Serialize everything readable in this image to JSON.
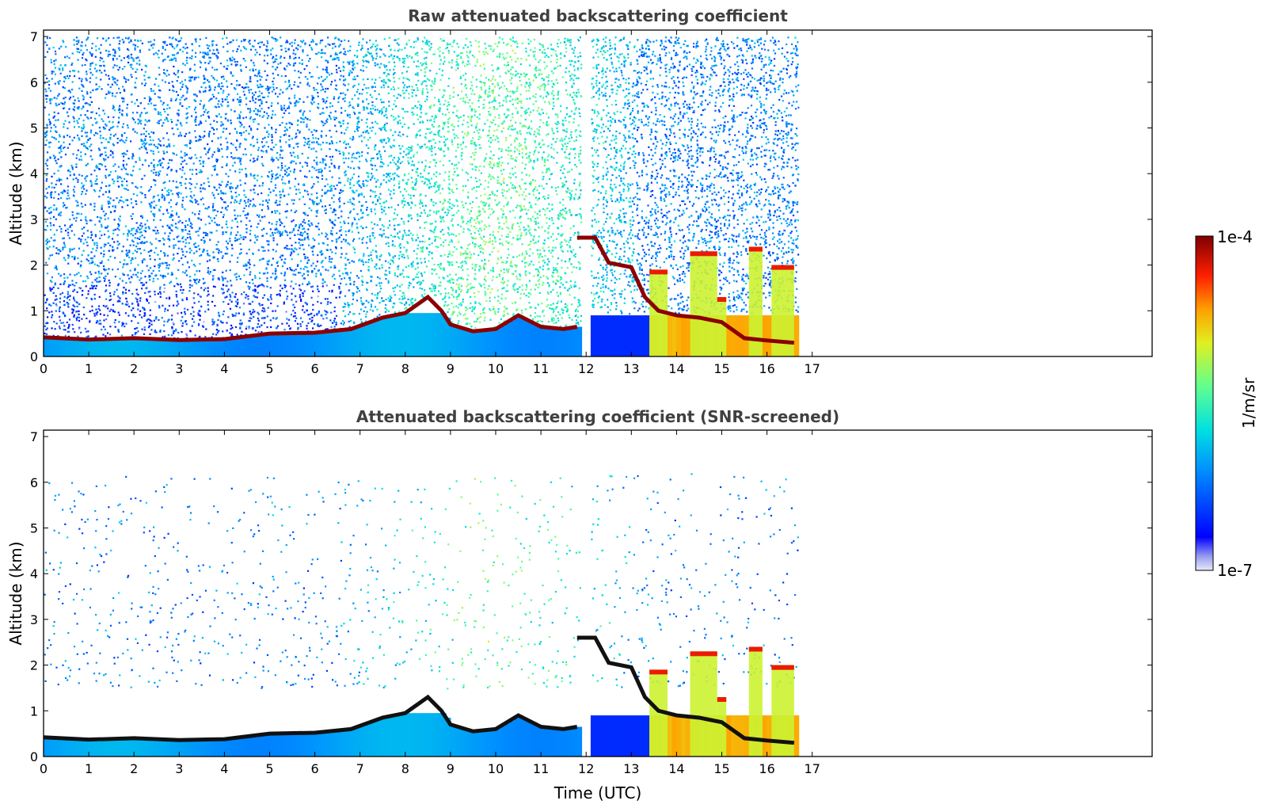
{
  "chart_data": [
    {
      "type": "heatmap",
      "title": "Raw attenuated backscattering coefficient",
      "xlabel": "",
      "ylabel": "Altitude (km)",
      "xlim": [
        0,
        24
      ],
      "ylim": [
        0,
        7
      ],
      "xticks": [
        "0",
        "1",
        "2",
        "3",
        "4",
        "5",
        "6",
        "7",
        "8",
        "9",
        "10",
        "11",
        "12",
        "13",
        "14",
        "15",
        "16",
        "17"
      ],
      "yticks": [
        "0",
        "1",
        "2",
        "3",
        "4",
        "5",
        "6",
        "7"
      ],
      "data_extent_hours": [
        0,
        16.6
      ],
      "screened": false,
      "features": {
        "boundary_layer_top_km": [
          [
            0,
            0.42
          ],
          [
            1,
            0.37
          ],
          [
            2,
            0.4
          ],
          [
            3,
            0.36
          ],
          [
            4,
            0.38
          ],
          [
            5,
            0.5
          ],
          [
            6,
            0.52
          ],
          [
            6.8,
            0.6
          ],
          [
            7.5,
            0.85
          ],
          [
            8,
            0.95
          ],
          [
            8.5,
            1.3
          ],
          [
            8.8,
            1.0
          ],
          [
            9,
            0.7
          ],
          [
            9.5,
            0.55
          ],
          [
            10,
            0.6
          ],
          [
            10.5,
            0.9
          ],
          [
            11,
            0.65
          ],
          [
            11.5,
            0.6
          ],
          [
            11.8,
            0.65
          ]
        ],
        "elevated_cloud_km": [
          [
            11.8,
            2.6
          ],
          [
            12.2,
            2.6
          ],
          [
            12.5,
            2.05
          ],
          [
            13,
            1.95
          ],
          [
            13.3,
            1.3
          ],
          [
            13.6,
            1.0
          ],
          [
            14,
            0.9
          ],
          [
            14.5,
            0.85
          ],
          [
            15,
            0.75
          ],
          [
            15.5,
            0.4
          ],
          [
            16,
            0.35
          ],
          [
            16.6,
            0.3
          ]
        ],
        "convective_columns_km": [
          [
            13.4,
            13.8,
            1.9
          ],
          [
            14.3,
            14.9,
            2.3
          ],
          [
            14.9,
            15.1,
            1.3
          ],
          [
            15.6,
            15.9,
            2.4
          ],
          [
            16.1,
            16.6,
            2.0
          ]
        ],
        "gaps_hours": [
          [
            11.85,
            12.05
          ]
        ]
      }
    },
    {
      "type": "heatmap",
      "title": "Attenuated backscattering coefficient (SNR-screened)",
      "xlabel": "Time (UTC)",
      "ylabel": "Altitude (km)",
      "xlim": [
        0,
        24
      ],
      "ylim": [
        0,
        7
      ],
      "xticks": [
        "0",
        "1",
        "2",
        "3",
        "4",
        "5",
        "6",
        "7",
        "8",
        "9",
        "10",
        "11",
        "12",
        "13",
        "14",
        "15",
        "16",
        "17"
      ],
      "yticks": [
        "0",
        "1",
        "2",
        "3",
        "4",
        "5",
        "6",
        "7"
      ],
      "data_extent_hours": [
        0,
        16.6
      ],
      "screened": true
    }
  ],
  "colorbar": {
    "label": "1/m/sr",
    "max_label": "1e-4",
    "min_label": "1e-7",
    "scale": "log",
    "range": [
      1e-07,
      0.0001
    ]
  }
}
